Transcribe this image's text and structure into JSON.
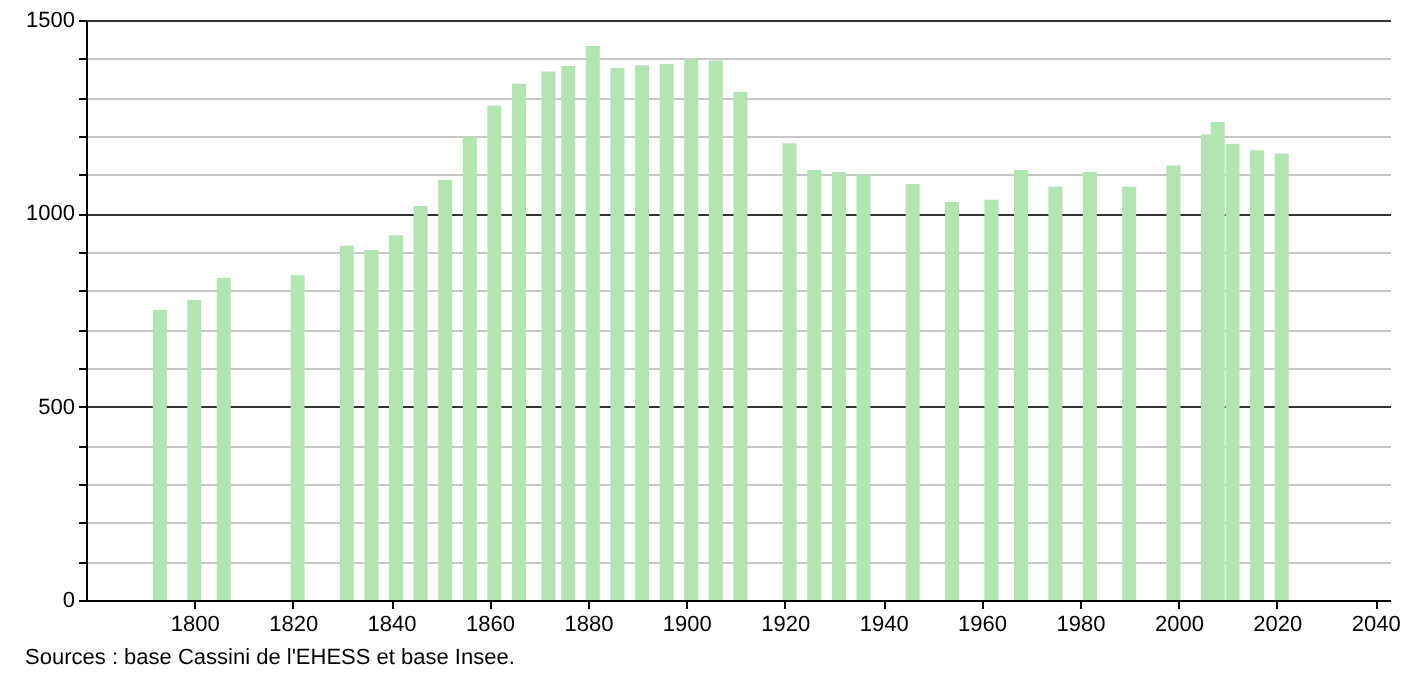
{
  "chart_data": {
    "type": "bar",
    "x": [
      1793,
      1800,
      1806,
      1821,
      1831,
      1836,
      1841,
      1846,
      1851,
      1856,
      1861,
      1866,
      1872,
      1876,
      1881,
      1886,
      1891,
      1896,
      1901,
      1906,
      1911,
      1921,
      1926,
      1931,
      1936,
      1946,
      1954,
      1962,
      1968,
      1975,
      1982,
      1990,
      1999,
      2006,
      2008,
      2011,
      2016,
      2021
    ],
    "values": [
      750,
      776,
      833,
      840,
      916,
      905,
      943,
      1019,
      1086,
      1198,
      1279,
      1335,
      1367,
      1381,
      1433,
      1376,
      1383,
      1386,
      1400,
      1395,
      1314,
      1181,
      1112,
      1107,
      1100,
      1076,
      1029,
      1035,
      1112,
      1069,
      1107,
      1069,
      1124,
      1204,
      1236,
      1180,
      1163,
      1155
    ],
    "color": "#b3e5b3",
    "xlim": [
      1778,
      2043
    ],
    "xticks": [
      1800,
      1820,
      1840,
      1860,
      1880,
      1900,
      1920,
      1940,
      1960,
      1980,
      2000,
      2020,
      2040
    ],
    "ylim": [
      0,
      1500
    ],
    "yticks": [
      0,
      {
        "value": 100,
        "label": null
      },
      {
        "value": 200,
        "label": null
      },
      {
        "value": 300,
        "label": null
      },
      {
        "value": 400,
        "label": null
      },
      500,
      {
        "value": 600,
        "label": null
      },
      {
        "value": 700,
        "label": null
      },
      {
        "value": 800,
        "label": null
      },
      {
        "value": 900,
        "label": null
      },
      1000,
      {
        "value": 1100,
        "label": null
      },
      {
        "value": 1200,
        "label": null
      },
      {
        "value": 1300,
        "label": null
      },
      {
        "value": 1400,
        "label": null
      },
      1500
    ],
    "grid": "y",
    "annotations": [
      "Sources : base Cassini de l'EHESS et base Insee."
    ]
  }
}
